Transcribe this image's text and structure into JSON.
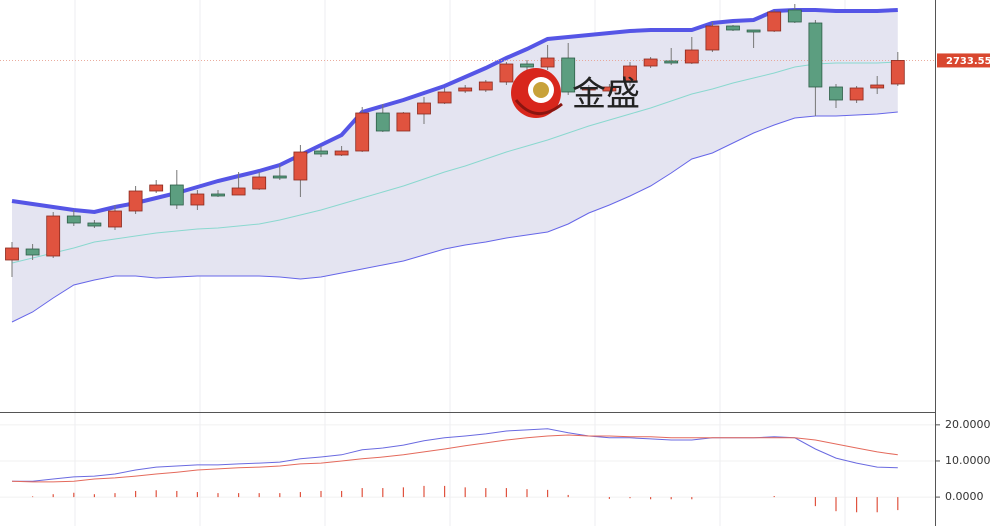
{
  "chart_data": [
    {
      "type": "candlestick",
      "ylim": [
        2382,
        2794
      ],
      "up_color": "#e0533f",
      "down_color": "#5c9e80",
      "open": [
        2534,
        2545,
        2538,
        2578,
        2571,
        2567,
        2583,
        2603,
        2609,
        2589,
        2600,
        2599,
        2605,
        2618,
        2614,
        2643,
        2639,
        2643,
        2681,
        2663,
        2680,
        2691,
        2703,
        2704,
        2712,
        2730,
        2727,
        2736,
        2704,
        2703,
        2712,
        2728,
        2733,
        2731,
        2744,
        2768,
        2764,
        2763,
        2784,
        2771,
        2707,
        2694,
        2706,
        2710
      ],
      "high": [
        2552,
        2550,
        2582,
        2584,
        2574,
        2589,
        2608,
        2614,
        2624,
        2604,
        2604,
        2622,
        2622,
        2630,
        2649,
        2648,
        2648,
        2687,
        2690,
        2682,
        2697,
        2706,
        2709,
        2714,
        2732,
        2734,
        2749,
        2751,
        2709,
        2710,
        2732,
        2737,
        2746,
        2757,
        2772,
        2769,
        2764,
        2784,
        2790,
        2774,
        2710,
        2708,
        2718,
        2742
      ],
      "low": [
        2517,
        2534,
        2536,
        2568,
        2566,
        2564,
        2580,
        2601,
        2585,
        2584,
        2597,
        2599,
        2604,
        2614,
        2597,
        2637,
        2638,
        2642,
        2662,
        2663,
        2670,
        2690,
        2701,
        2702,
        2709,
        2724,
        2724,
        2699,
        2702,
        2701,
        2708,
        2726,
        2729,
        2730,
        2742,
        2763,
        2746,
        2762,
        2771,
        2678,
        2686,
        2691,
        2700,
        2708
      ],
      "close": [
        2546,
        2539,
        2578,
        2571,
        2568,
        2583,
        2603,
        2609,
        2589,
        2600,
        2598,
        2606,
        2617,
        2616,
        2642,
        2640,
        2643,
        2681,
        2663,
        2681,
        2691,
        2702,
        2706,
        2712,
        2730,
        2727,
        2736,
        2702,
        2706,
        2707,
        2728,
        2735,
        2731,
        2744,
        2768,
        2764,
        2762,
        2782,
        2772,
        2707,
        2694,
        2706,
        2709,
        2733.55
      ],
      "bands": {
        "fill": "#e4e4f1",
        "upper": {
          "color": "#5555e6",
          "values": [
            2593,
            2590,
            2587,
            2584,
            2582,
            2587,
            2591,
            2596,
            2601,
            2607,
            2613,
            2618,
            2623,
            2629,
            2639,
            2649,
            2659,
            2682,
            2688,
            2694,
            2701,
            2708,
            2717,
            2726,
            2736,
            2745,
            2755,
            2757,
            2759,
            2761,
            2763,
            2764,
            2764,
            2764,
            2771,
            2773,
            2774,
            2783,
            2784,
            2784,
            2783,
            2783,
            2783,
            2784
          ]
        },
        "middle": {
          "color": "#8ad8cf",
          "values": [
            2531,
            2536,
            2541,
            2546,
            2552,
            2555,
            2558,
            2561,
            2563,
            2565,
            2566,
            2568,
            2570,
            2574,
            2579,
            2584,
            2590,
            2596,
            2602,
            2608,
            2615,
            2622,
            2628,
            2635,
            2642,
            2648,
            2654,
            2661,
            2668,
            2674,
            2680,
            2686,
            2693,
            2700,
            2705,
            2711,
            2716,
            2721,
            2727,
            2730,
            2731,
            2731,
            2731,
            2732
          ]
        },
        "lower": {
          "color": "#6666e8",
          "values": [
            2472,
            2482,
            2496,
            2509,
            2514,
            2518,
            2518,
            2516,
            2517,
            2518,
            2518,
            2518,
            2518,
            2517,
            2515,
            2517,
            2521,
            2525,
            2529,
            2533,
            2539,
            2545,
            2549,
            2552,
            2556,
            2559,
            2562,
            2570,
            2581,
            2589,
            2598,
            2608,
            2621,
            2635,
            2641,
            2651,
            2661,
            2669,
            2676,
            2678,
            2678,
            2679,
            2680,
            2682
          ]
        }
      },
      "watermark": "金盛"
    },
    {
      "type": "macd",
      "ylim": [
        -8,
        23
      ],
      "yticks": [
        {
          "value": 20,
          "label": "20.0000"
        },
        {
          "value": 10,
          "label": "10.0000"
        },
        {
          "value": 0,
          "label": "0.0000"
        }
      ],
      "series": [
        {
          "color": "#6a6ae0",
          "values": [
            4.4,
            4.4,
            5.0,
            5.6,
            5.8,
            6.4,
            7.5,
            8.3,
            8.6,
            8.9,
            8.9,
            9.2,
            9.4,
            9.7,
            10.6,
            11.1,
            11.7,
            13.1,
            13.6,
            14.4,
            15.6,
            16.4,
            16.9,
            17.5,
            18.3,
            18.6,
            18.9,
            17.8,
            16.9,
            16.4,
            16.4,
            16.1,
            15.8,
            15.8,
            16.4,
            16.4,
            16.4,
            16.7,
            16.4,
            13.3,
            10.8,
            9.4,
            8.3,
            8.1
          ]
        },
        {
          "color": "#e46a5c",
          "values": [
            4.4,
            4.2,
            4.2,
            4.4,
            5.0,
            5.3,
            5.8,
            6.4,
            6.9,
            7.5,
            7.8,
            8.1,
            8.3,
            8.6,
            9.2,
            9.4,
            10.0,
            10.6,
            11.1,
            11.7,
            12.5,
            13.3,
            14.2,
            15.0,
            15.8,
            16.4,
            16.9,
            17.2,
            16.9,
            16.9,
            16.7,
            16.7,
            16.4,
            16.4,
            16.4,
            16.4,
            16.4,
            16.4,
            16.4,
            15.8,
            14.7,
            13.6,
            12.5,
            11.7
          ]
        }
      ],
      "histogram": {
        "color": "#e0533f",
        "values": [
          0,
          0.2,
          0.8,
          1.2,
          0.8,
          1.1,
          1.7,
          1.9,
          1.7,
          1.4,
          1.1,
          1.1,
          1.1,
          1.1,
          1.4,
          1.7,
          1.7,
          2.5,
          2.5,
          2.7,
          3.1,
          3.1,
          2.7,
          2.5,
          2.5,
          2.2,
          2.0,
          0.6,
          0,
          -0.5,
          -0.3,
          -0.6,
          -0.6,
          -0.6,
          0,
          0,
          0,
          0.3,
          0,
          -2.5,
          -3.9,
          -4.2,
          -4.2,
          -3.6
        ]
      }
    }
  ]
}
